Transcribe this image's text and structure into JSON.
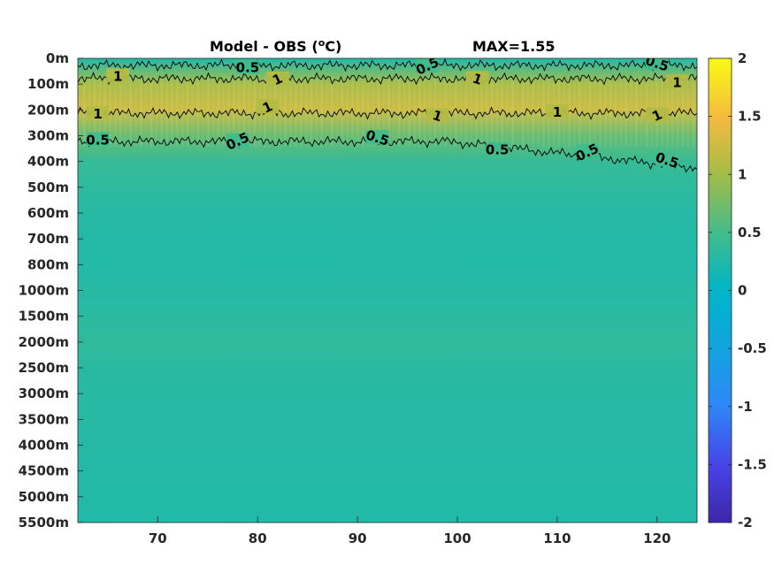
{
  "chart_data": {
    "type": "heatmap",
    "title": "Model - OBS (",
    "title_unit": "o",
    "title_unit_tail": "C)",
    "annotation": "MAX=1.55",
    "x_range": [
      62,
      124
    ],
    "x_ticks": [
      70,
      80,
      90,
      100,
      110,
      120
    ],
    "y_labels": [
      "0m",
      "100m",
      "200m",
      "300m",
      "400m",
      "500m",
      "600m",
      "700m",
      "800m",
      "1000m",
      "1500m",
      "2000m",
      "2500m",
      "3000m",
      "3500m",
      "4000m",
      "4500m",
      "5000m",
      "5500m"
    ],
    "colorbar": {
      "range": [
        -2,
        2
      ],
      "ticks": [
        "2",
        "1.5",
        "1",
        "0.5",
        "0",
        "-0.5",
        "-1",
        "-1.5",
        "-2"
      ],
      "colormap": "parula"
    },
    "depth_profile": [
      0.25,
      1.05,
      1.25,
      0.7,
      0.42,
      0.36,
      0.3,
      0.28,
      0.27,
      0.3,
      0.33,
      0.38,
      0.32,
      0.31,
      0.3,
      0.29,
      0.28,
      0.27,
      0.26
    ],
    "contours": [
      {
        "level": "0.5",
        "labels_x": [
          79,
          97,
          120
        ]
      },
      {
        "level": "1",
        "labels_x": [
          66,
          82,
          102,
          122
        ]
      },
      {
        "level": "1",
        "labels_x": [
          64,
          81,
          98,
          110,
          120
        ]
      },
      {
        "level": "0.5",
        "labels_x": [
          64,
          78,
          92,
          104,
          113,
          121
        ]
      }
    ]
  }
}
